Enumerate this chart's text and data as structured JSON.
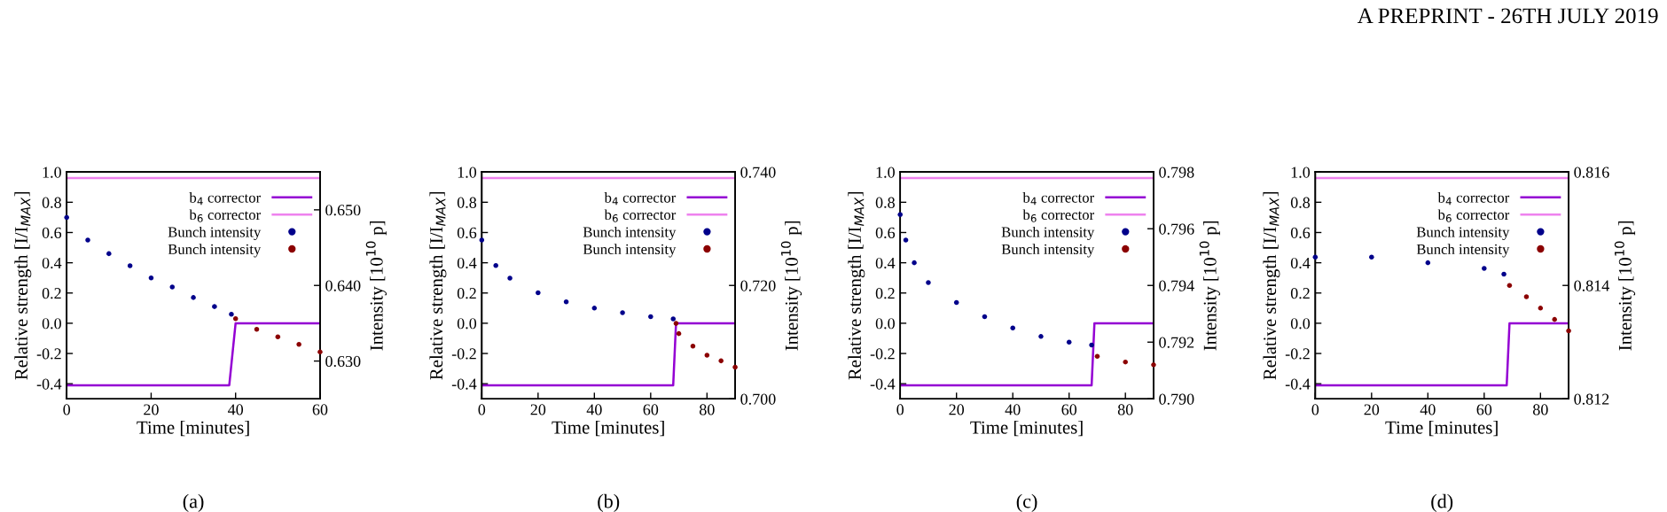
{
  "chart_data": [
    {
      "type": "line",
      "xlabel": "Time [minutes]",
      "ylabel": "Relative strength [I/I$_{MAX}$]",
      "y2label": "Intensity [10$^{10}$ p]",
      "annotations": [
        "A PREPRINT - 26TH JULY 2019",
        "(a)"
      ],
      "xlim": [
        0,
        60
      ],
      "xticks": [
        0,
        20,
        40,
        60
      ],
      "ylim": [
        -0.5,
        1.0
      ],
      "yticks": [
        {
          "value": -0.4,
          "label": "-0.4"
        },
        {
          "value": -0.2,
          "label": "-0.2"
        },
        {
          "value": 0,
          "label": "0.0"
        },
        {
          "value": 0.2,
          "label": "0.2"
        },
        {
          "value": 0.4,
          "label": "0.4"
        },
        {
          "value": 0.6,
          "label": "0.6"
        },
        {
          "value": 0.8,
          "label": "0.8"
        },
        {
          "value": 1.0,
          "label": "1.0"
        }
      ],
      "y2lim": [
        0.625,
        0.655
      ],
      "y2ticks": [
        {
          "value": 0.63,
          "label": "0.630"
        },
        {
          "value": 0.64,
          "label": "0.640"
        },
        {
          "value": 0.65,
          "label": "0.650"
        }
      ],
      "legend": "top right",
      "grid": false,
      "series": [
        {
          "name": "b$_{4}$ corrector",
          "color": "#9400d3",
          "x": [
            0,
            38.5,
            40,
            60
          ],
          "values": [
            -0.41,
            -0.41,
            0,
            0
          ]
        },
        {
          "name": "b$_{6}$ corrector",
          "color": "#ee82ee",
          "x": [
            0,
            60
          ],
          "values": [
            0.96,
            0.96
          ]
        },
        {
          "name": "Bunch intensity",
          "type": "scatter",
          "axis": "y2",
          "color": "#00008b",
          "x": [
            0,
            5,
            10,
            15,
            20,
            25,
            30,
            35,
            39
          ],
          "values": [
            0.649,
            0.646,
            0.6442,
            0.6426,
            0.641,
            0.6398,
            0.6384,
            0.6372,
            0.6362
          ]
        },
        {
          "name": "Bunch intensity",
          "type": "scatter",
          "axis": "y2",
          "color": "#8b0000",
          "x": [
            40,
            45,
            50,
            55,
            60
          ],
          "values": [
            0.6356,
            0.6342,
            0.6332,
            0.6322,
            0.6312
          ]
        }
      ]
    },
    {
      "type": "line",
      "xlabel": "Time [minutes]",
      "ylabel": "Relative strength [I/I$_{MAX}$]",
      "y2label": "Intensity [10$^{10}$ p]",
      "annotations": [
        "(b)"
      ],
      "xlim": [
        0,
        90
      ],
      "xticks": [
        0,
        20,
        40,
        60,
        80
      ],
      "ylim": [
        -0.5,
        1.0
      ],
      "yticks": [
        {
          "value": -0.4,
          "label": "-0.4"
        },
        {
          "value": -0.2,
          "label": "-0.2"
        },
        {
          "value": 0,
          "label": "0.0"
        },
        {
          "value": 0.2,
          "label": "0.2"
        },
        {
          "value": 0.4,
          "label": "0.4"
        },
        {
          "value": 0.6,
          "label": "0.6"
        },
        {
          "value": 0.8,
          "label": "0.8"
        },
        {
          "value": 1.0,
          "label": "1.0"
        }
      ],
      "y2lim": [
        0.7,
        0.74
      ],
      "y2ticks": [
        {
          "value": 0.7,
          "label": "0.700"
        },
        {
          "value": 0.72,
          "label": "0.720"
        },
        {
          "value": 0.74,
          "label": "0.740"
        }
      ],
      "legend": "top right",
      "grid": false,
      "series": [
        {
          "name": "b$_{4}$ corrector",
          "color": "#9400d3",
          "x": [
            0,
            68,
            69,
            90
          ],
          "values": [
            -0.41,
            -0.41,
            0,
            0
          ]
        },
        {
          "name": "b$_{6}$ corrector",
          "color": "#ee82ee",
          "x": [
            0,
            90
          ],
          "values": [
            0.96,
            0.96
          ]
        },
        {
          "name": "Bunch intensity",
          "type": "scatter",
          "axis": "y2",
          "color": "#00008b",
          "x": [
            0,
            5,
            10,
            20,
            30,
            40,
            50,
            60,
            68
          ],
          "values": [
            0.728,
            0.7235,
            0.7213,
            0.7187,
            0.7171,
            0.716,
            0.7152,
            0.7145,
            0.7141
          ]
        },
        {
          "name": "Bunch intensity",
          "type": "scatter",
          "axis": "y2",
          "color": "#8b0000",
          "x": [
            69,
            70,
            75,
            80,
            85,
            90
          ],
          "values": [
            0.7133,
            0.7115,
            0.7093,
            0.7077,
            0.7067,
            0.7056
          ]
        }
      ]
    },
    {
      "type": "line",
      "xlabel": "Time [minutes]",
      "ylabel": "Relative strength [I/I$_{MAX}$]",
      "y2label": "Intensity [10$^{10}$ p]",
      "annotations": [
        "(c)"
      ],
      "xlim": [
        0,
        90
      ],
      "xticks": [
        0,
        20,
        40,
        60,
        80
      ],
      "ylim": [
        -0.5,
        1.0
      ],
      "yticks": [
        {
          "value": -0.4,
          "label": "-0.4"
        },
        {
          "value": -0.2,
          "label": "-0.2"
        },
        {
          "value": 0,
          "label": "0.0"
        },
        {
          "value": 0.2,
          "label": "0.2"
        },
        {
          "value": 0.4,
          "label": "0.4"
        },
        {
          "value": 0.6,
          "label": "0.6"
        },
        {
          "value": 0.8,
          "label": "0.8"
        },
        {
          "value": 1.0,
          "label": "1.0"
        }
      ],
      "y2lim": [
        0.79,
        0.798
      ],
      "y2ticks": [
        {
          "value": 0.79,
          "label": "0.790"
        },
        {
          "value": 0.792,
          "label": "0.792"
        },
        {
          "value": 0.794,
          "label": "0.794"
        },
        {
          "value": 0.796,
          "label": "0.796"
        },
        {
          "value": 0.798,
          "label": "0.798"
        }
      ],
      "legend": "top right",
      "grid": false,
      "series": [
        {
          "name": "b$_{4}$ corrector",
          "color": "#9400d3",
          "x": [
            0,
            68,
            69,
            90
          ],
          "values": [
            -0.41,
            -0.41,
            0,
            0
          ]
        },
        {
          "name": "b$_{6}$ corrector",
          "color": "#ee82ee",
          "x": [
            0,
            90
          ],
          "values": [
            0.96,
            0.96
          ]
        },
        {
          "name": "Bunch intensity",
          "type": "scatter",
          "axis": "y2",
          "color": "#00008b",
          "x": [
            0,
            2,
            5,
            10,
            20,
            30,
            40,
            50,
            60,
            68
          ],
          "values": [
            0.7965,
            0.7956,
            0.7948,
            0.7941,
            0.7934,
            0.7929,
            0.7925,
            0.7922,
            0.792,
            0.7919
          ]
        },
        {
          "name": "Bunch intensity",
          "type": "scatter",
          "axis": "y2",
          "color": "#8b0000",
          "x": [
            70,
            80,
            90
          ],
          "values": [
            0.7915,
            0.7913,
            0.7912
          ]
        }
      ]
    },
    {
      "type": "line",
      "xlabel": "Time [minutes]",
      "ylabel": "Relative strength [I/I$_{MAX}$]",
      "y2label": "Intensity [10$^{10}$ p]",
      "annotations": [
        "(d)"
      ],
      "xlim": [
        0,
        90
      ],
      "xticks": [
        0,
        20,
        40,
        60,
        80
      ],
      "ylim": [
        -0.5,
        1.0
      ],
      "yticks": [
        {
          "value": -0.4,
          "label": "-0.4"
        },
        {
          "value": -0.2,
          "label": "-0.2"
        },
        {
          "value": 0,
          "label": "0.0"
        },
        {
          "value": 0.2,
          "label": "0.2"
        },
        {
          "value": 0.4,
          "label": "0.4"
        },
        {
          "value": 0.6,
          "label": "0.6"
        },
        {
          "value": 0.8,
          "label": "0.8"
        },
        {
          "value": 1.0,
          "label": "1.0"
        }
      ],
      "y2lim": [
        0.812,
        0.816
      ],
      "y2ticks": [
        {
          "value": 0.812,
          "label": "0.812"
        },
        {
          "value": 0.814,
          "label": "0.814"
        },
        {
          "value": 0.816,
          "label": "0.816"
        }
      ],
      "legend": "top right",
      "grid": false,
      "series": [
        {
          "name": "b$_{4}$ corrector",
          "color": "#9400d3",
          "x": [
            0,
            68,
            69,
            90
          ],
          "values": [
            -0.41,
            -0.41,
            0,
            0
          ]
        },
        {
          "name": "b$_{6}$ corrector",
          "color": "#ee82ee",
          "x": [
            0,
            90
          ],
          "values": [
            0.96,
            0.96
          ]
        },
        {
          "name": "Bunch intensity",
          "type": "scatter",
          "axis": "y2",
          "color": "#00008b",
          "x": [
            0,
            20,
            40,
            60,
            67
          ],
          "values": [
            0.8145,
            0.8145,
            0.8144,
            0.8143,
            0.8142
          ]
        },
        {
          "name": "Bunch intensity",
          "type": "scatter",
          "axis": "y2",
          "color": "#8b0000",
          "x": [
            69,
            75,
            80,
            85,
            90
          ],
          "values": [
            0.814,
            0.8138,
            0.8136,
            0.8134,
            0.8132
          ]
        }
      ]
    }
  ]
}
